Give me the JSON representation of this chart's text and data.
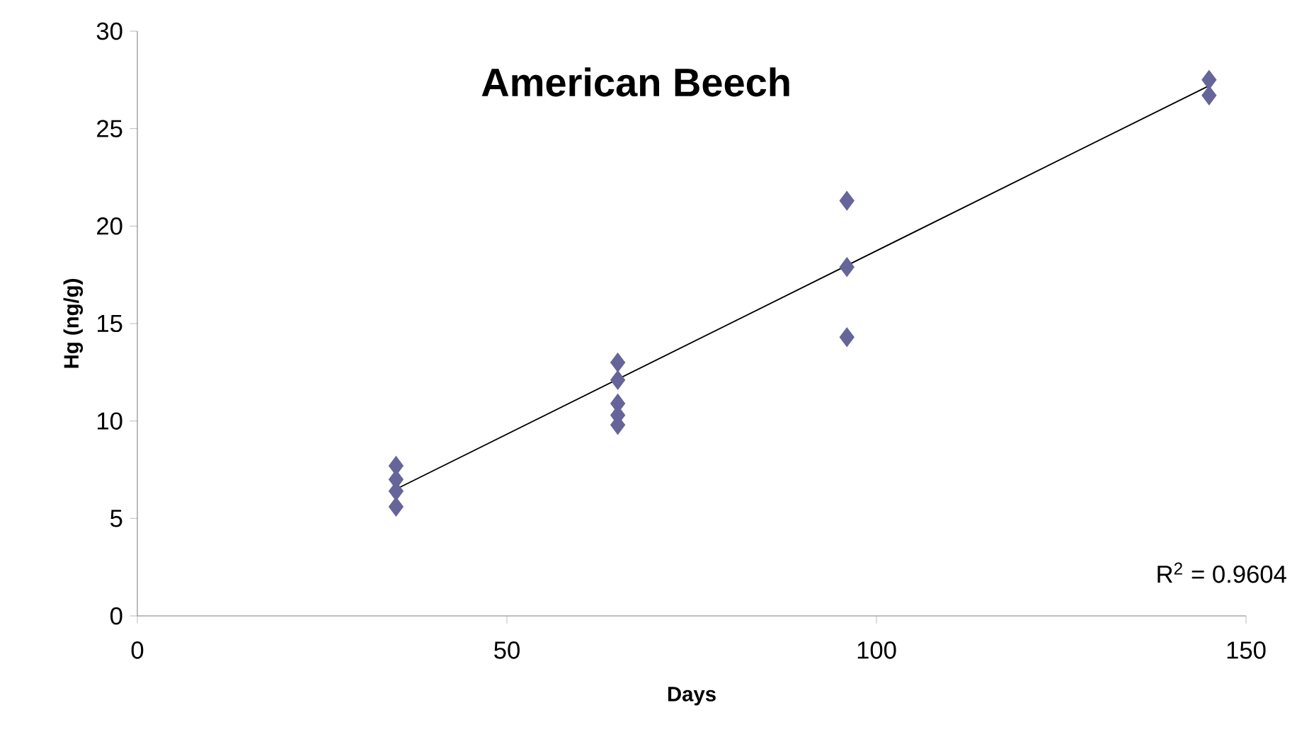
{
  "chart_data": {
    "type": "scatter",
    "title": "American Beech",
    "xlabel": "Days",
    "ylabel": "Hg (ng/g)",
    "series": [
      {
        "color": "#65659a",
        "marker": "diamond",
        "x": [
          35,
          35,
          35,
          35,
          65,
          65,
          65,
          65,
          65,
          96,
          96,
          96,
          145,
          145
        ],
        "values": [
          7.7,
          7.0,
          6.4,
          5.6,
          13.0,
          12.1,
          10.9,
          10.3,
          9.8,
          21.3,
          17.9,
          14.3,
          27.5,
          26.7
        ]
      },
      {
        "type": "line",
        "color": "#000000",
        "marker": "none",
        "x": [
          35,
          145
        ],
        "values": [
          6.5,
          27.2
        ]
      }
    ],
    "xlim": [
      0,
      150
    ],
    "ylim": [
      0,
      30
    ],
    "xticks": [
      0,
      50,
      100,
      150
    ],
    "yticks": [
      0,
      5,
      10,
      15,
      20,
      25,
      30
    ],
    "annotations": [
      "R$^{2}$ = 0.9604"
    ],
    "grid": false
  }
}
